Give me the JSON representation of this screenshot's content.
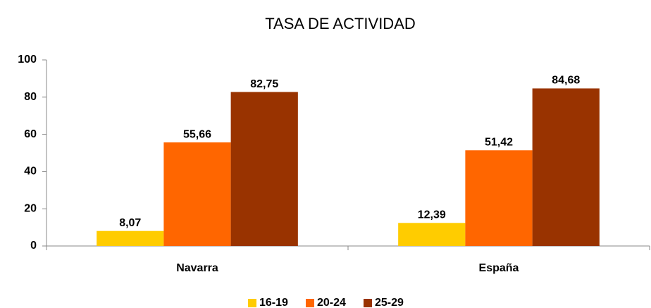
{
  "chart_data": {
    "type": "bar",
    "title": "TASA DE ACTIVIDAD",
    "categories": [
      "Navarra",
      "España"
    ],
    "series": [
      {
        "name": "16-19",
        "color": "#FFCC00",
        "values": [
          8.07,
          12.39
        ],
        "value_labels": [
          "8,07",
          "12,39"
        ]
      },
      {
        "name": "20-24",
        "color": "#FF6600",
        "values": [
          55.66,
          51.42
        ],
        "value_labels": [
          "55,66",
          "51,42"
        ]
      },
      {
        "name": "25-29",
        "color": "#993300",
        "values": [
          82.75,
          84.68
        ],
        "value_labels": [
          "82,75",
          "84,68"
        ]
      }
    ],
    "ylim": [
      0,
      100
    ],
    "yticks": [
      0,
      20,
      40,
      60,
      80,
      100
    ],
    "grid": false,
    "legend": "bottom"
  }
}
